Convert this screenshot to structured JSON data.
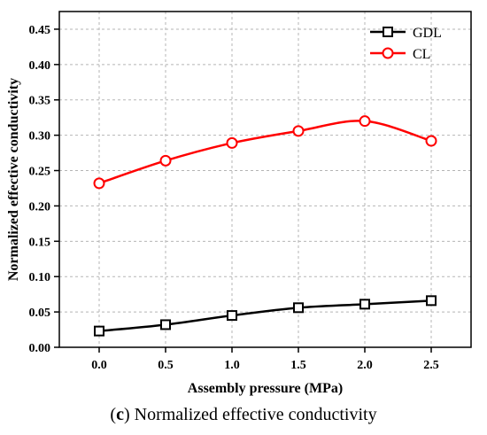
{
  "chart_data": {
    "type": "line",
    "xlabel": "Assembly pressure (MPa)",
    "ylabel": "Normalized effective conductivity",
    "x": [
      0.0,
      0.5,
      1.0,
      1.5,
      2.0,
      2.5
    ],
    "x_ticks": [
      "0.0",
      "0.5",
      "1.0",
      "1.5",
      "2.0",
      "2.5"
    ],
    "xlim": [
      -0.3,
      2.8
    ],
    "y_ticks": [
      "0.00",
      "0.05",
      "0.10",
      "0.15",
      "0.20",
      "0.25",
      "0.30",
      "0.35",
      "0.40",
      "0.45"
    ],
    "ylim": [
      0.0,
      0.475
    ],
    "grid": true,
    "legend_position": "top-right",
    "series": [
      {
        "name": "GDL",
        "color": "#000000",
        "marker": "square",
        "values": [
          0.023,
          0.032,
          0.045,
          0.056,
          0.061,
          0.066
        ]
      },
      {
        "name": "CL",
        "color": "#ff0000",
        "marker": "circle",
        "values": [
          0.232,
          0.264,
          0.289,
          0.306,
          0.32,
          0.292
        ]
      }
    ]
  },
  "caption": {
    "prefix_open": "(",
    "letter": "c",
    "prefix_close": ")",
    "text": " Normalized effective conductivity"
  }
}
